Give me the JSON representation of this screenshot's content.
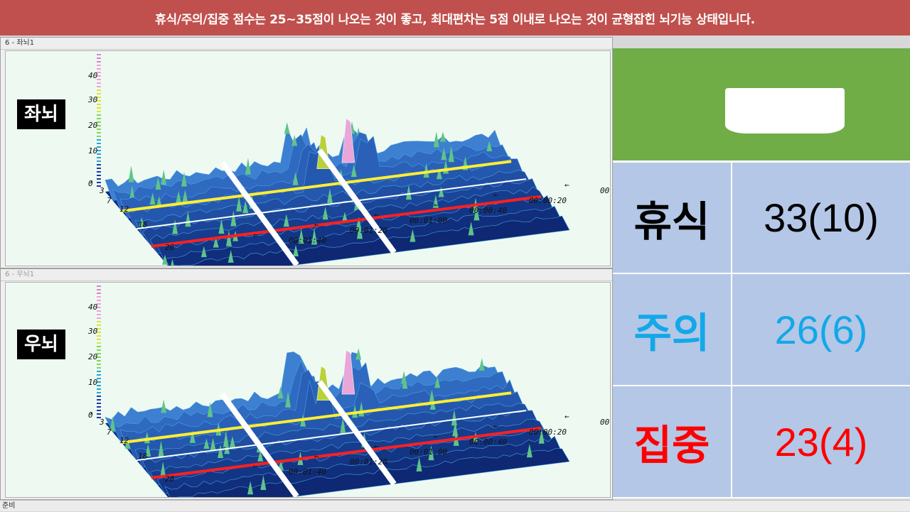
{
  "banner": {
    "text": "휴식/주의/집중 점수는 25~35점이 나오는 것이 좋고, 최대편차는 5점 이내로 나오는 것이 균형잡힌 뇌기능 상태입니다."
  },
  "windows": [
    {
      "title": "6 - 좌뇌1",
      "label": "좌뇌",
      "z_ticks": [
        "40",
        "30",
        "20",
        "10",
        "0"
      ],
      "freq_ticks": [
        "3",
        "7",
        "12",
        "18",
        "28"
      ],
      "time_ticks": [
        "00:01:40",
        "00:01:20",
        "00:01:00",
        "00:00:40",
        "00:00:20",
        "00:0"
      ]
    },
    {
      "title": "6 - 우뇌1",
      "label": "우뇌",
      "z_ticks": [
        "40",
        "30",
        "20",
        "10",
        "0"
      ],
      "freq_ticks": [
        "3",
        "7",
        "12",
        "18",
        "28"
      ],
      "time_ticks": [
        "00:01:40",
        "00:01:20",
        "00:01:00",
        "00:00:40",
        "00:00:20",
        "00:0"
      ]
    }
  ],
  "status": {
    "text": "준비"
  },
  "scores": [
    {
      "label": "휴식",
      "value": "33(10)",
      "color": "#000000"
    },
    {
      "label": "주의",
      "value": "26(6)",
      "color": "#13a8e8"
    },
    {
      "label": "집중",
      "value": "23(4)",
      "color": "#ff0000"
    }
  ]
}
